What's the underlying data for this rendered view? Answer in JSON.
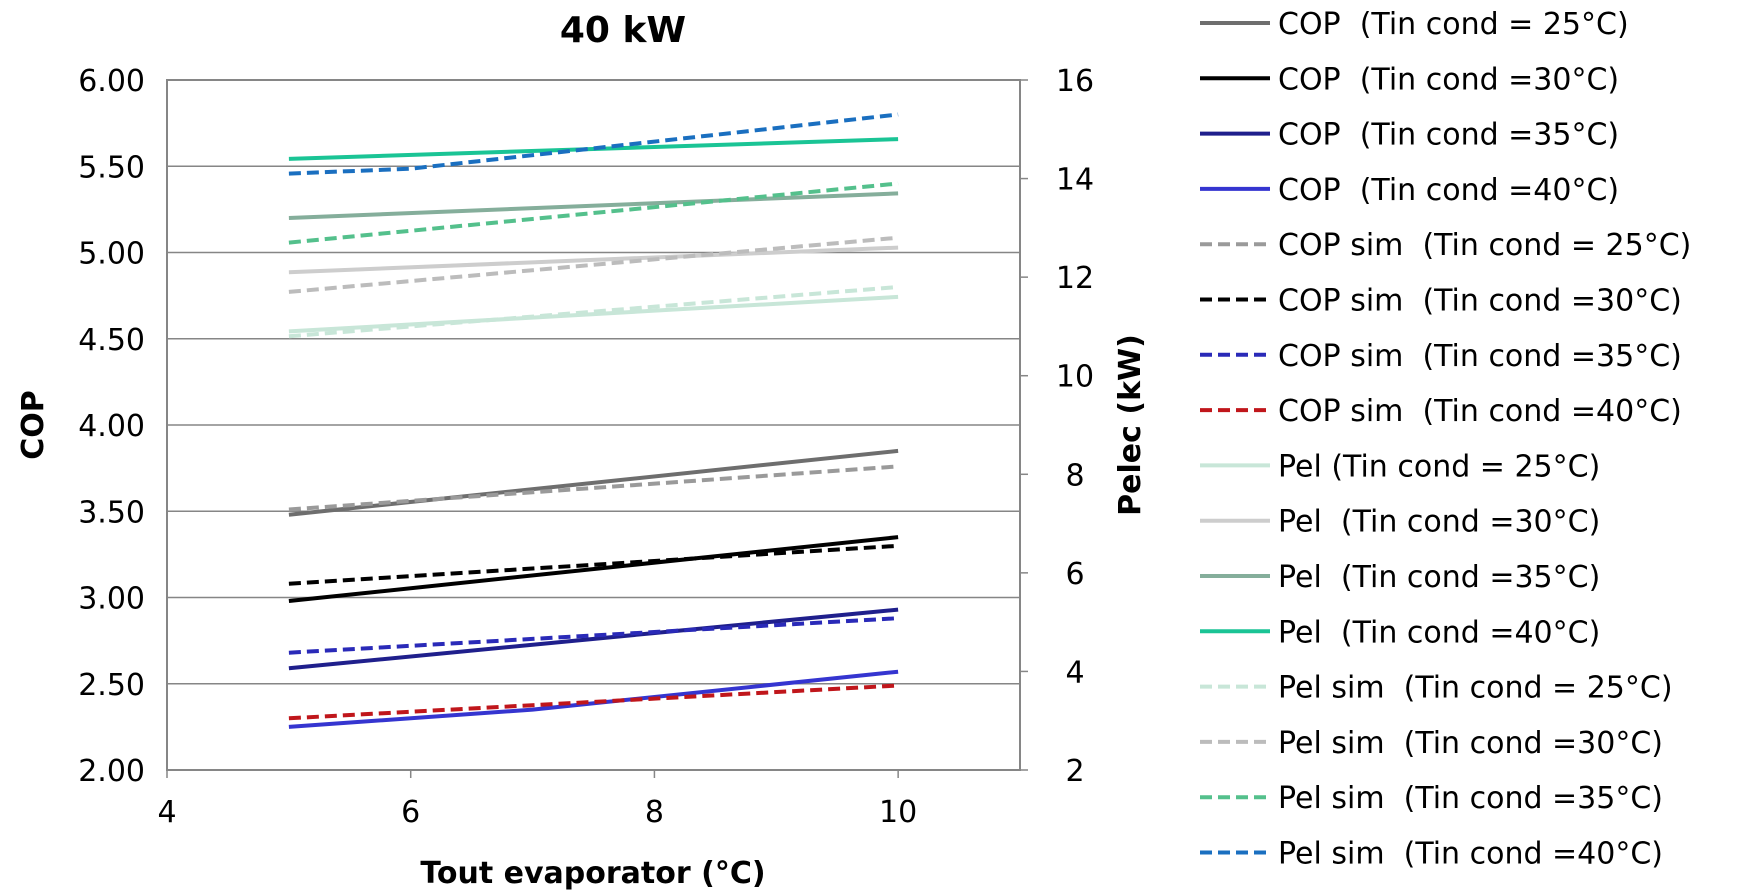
{
  "chart_data": {
    "type": "line",
    "title": "40 kW",
    "xlabel": "Tout evaporator (°C)",
    "ylabel": "COP",
    "y2label": "Pelec  (kW)",
    "xlim": [
      4,
      11
    ],
    "ylim": [
      2.0,
      6.0
    ],
    "y2lim": [
      2,
      16
    ],
    "x_ticks": [
      "4",
      "6",
      "8",
      "10"
    ],
    "y_ticks": [
      "2.00",
      "2.50",
      "3.00",
      "3.50",
      "4.00",
      "4.50",
      "5.00",
      "5.50",
      "6.00"
    ],
    "y2_ticks": [
      "2",
      "4",
      "6",
      "8",
      "10",
      "12",
      "14",
      "16"
    ],
    "grid": "horizontal",
    "legend_position": "right",
    "series": [
      {
        "name": "COP  (Tin cond = 25°C)",
        "axis": "left",
        "color": "#6e6e6e",
        "dash": "solid",
        "x": [
          5,
          10
        ],
        "y": [
          3.48,
          3.85
        ]
      },
      {
        "name": "COP  (Tin cond =30°C)",
        "axis": "left",
        "color": "#000000",
        "dash": "solid",
        "x": [
          5,
          10
        ],
        "y": [
          2.98,
          3.35
        ]
      },
      {
        "name": "COP  (Tin cond =35°C)",
        "axis": "left",
        "color": "#1f1f8c",
        "dash": "solid",
        "x": [
          5,
          10
        ],
        "y": [
          2.59,
          2.93
        ]
      },
      {
        "name": "COP  (Tin cond =40°C)",
        "axis": "left",
        "color": "#3535d0",
        "dash": "solid",
        "x": [
          5,
          7,
          10
        ],
        "y": [
          2.25,
          2.35,
          2.57
        ]
      },
      {
        "name": "COP sim  (Tin cond = 25°C)",
        "axis": "left",
        "color": "#9a9a9a",
        "dash": "dashed",
        "x": [
          5,
          10
        ],
        "y": [
          3.51,
          3.76
        ]
      },
      {
        "name": "COP sim  (Tin cond =30°C)",
        "axis": "left",
        "color": "#000000",
        "dash": "dashed",
        "x": [
          5,
          10
        ],
        "y": [
          3.08,
          3.3
        ]
      },
      {
        "name": "COP sim  (Tin cond =35°C)",
        "axis": "left",
        "color": "#2a2ab8",
        "dash": "dashed",
        "x": [
          5,
          10
        ],
        "y": [
          2.68,
          2.88
        ]
      },
      {
        "name": "COP sim  (Tin cond =40°C)",
        "axis": "left",
        "color": "#c0161b",
        "dash": "dashed",
        "x": [
          5,
          10
        ],
        "y": [
          2.3,
          2.49
        ]
      },
      {
        "name": "Pel (Tin cond = 25°C)",
        "axis": "right",
        "color": "#c8e6d8",
        "dash": "solid",
        "x": [
          5,
          10
        ],
        "y": [
          10.9,
          11.6
        ]
      },
      {
        "name": "Pel  (Tin cond =30°C)",
        "axis": "right",
        "color": "#cdcdcd",
        "dash": "solid",
        "x": [
          5,
          10
        ],
        "y": [
          12.1,
          12.6
        ]
      },
      {
        "name": "Pel  (Tin cond =35°C)",
        "axis": "right",
        "color": "#85ae9b",
        "dash": "solid",
        "x": [
          5,
          10
        ],
        "y": [
          13.2,
          13.7
        ]
      },
      {
        "name": "Pel  (Tin cond =40°C)",
        "axis": "right",
        "color": "#1ac495",
        "dash": "solid",
        "x": [
          5,
          10
        ],
        "y": [
          14.4,
          14.8
        ]
      },
      {
        "name": "Pel sim  (Tin cond = 25°C)",
        "axis": "right",
        "color": "#c8e6d8",
        "dash": "dashed",
        "x": [
          5,
          10
        ],
        "y": [
          10.8,
          11.8
        ]
      },
      {
        "name": "Pel sim  (Tin cond =30°C)",
        "axis": "right",
        "color": "#bcbcbc",
        "dash": "dashed",
        "x": [
          5,
          10
        ],
        "y": [
          11.7,
          12.8
        ]
      },
      {
        "name": "Pel sim  (Tin cond =35°C)",
        "axis": "right",
        "color": "#54c08c",
        "dash": "dashed",
        "x": [
          5,
          10
        ],
        "y": [
          12.7,
          13.9
        ]
      },
      {
        "name": "Pel sim  (Tin cond =40°C)",
        "axis": "right",
        "color": "#1a6fc0",
        "dash": "dashed",
        "x": [
          5,
          6,
          10
        ],
        "y": [
          14.1,
          14.2,
          15.3
        ]
      }
    ]
  }
}
